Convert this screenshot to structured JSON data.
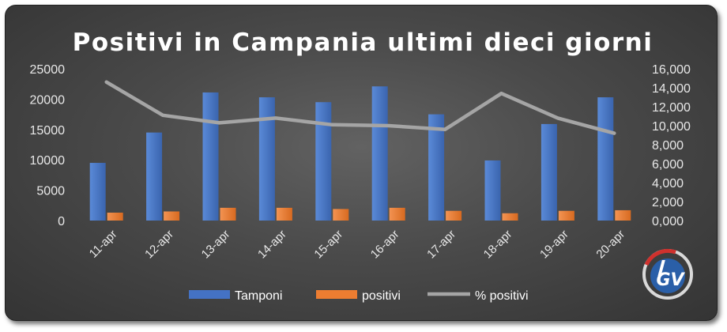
{
  "chart_data": {
    "type": "bar",
    "title": "Positivi in Campania ultimi dieci giorni",
    "categories": [
      "11-apr",
      "12-apr",
      "13-apr",
      "14-apr",
      "15-apr",
      "16-apr",
      "17-apr",
      "18-apr",
      "19-apr",
      "20-apr"
    ],
    "series": [
      {
        "name": "Tamponi",
        "type": "bar",
        "axis": "left",
        "color": "#4472C4",
        "values": [
          9500,
          14500,
          21100,
          20300,
          19500,
          22100,
          17500,
          9900,
          15900,
          20300
        ]
      },
      {
        "name": "positivi",
        "type": "bar",
        "axis": "left",
        "color": "#ED7D31",
        "values": [
          1300,
          1500,
          2100,
          2100,
          1900,
          2100,
          1600,
          1200,
          1600,
          1700
        ]
      },
      {
        "name": "% positivi",
        "type": "line",
        "axis": "right",
        "color": "#A5A5A5",
        "values": [
          14600,
          11100,
          10300,
          10800,
          10100,
          10000,
          9600,
          13400,
          10800,
          9200
        ]
      }
    ],
    "y_left": {
      "min": 0,
      "max": 25000,
      "ticks": [
        "0",
        "5000",
        "10000",
        "15000",
        "20000",
        "25000"
      ]
    },
    "y_right": {
      "min": 0,
      "max": 16000,
      "ticks": [
        "0,000",
        "2,000",
        "4,000",
        "6,000",
        "8,000",
        "10,000",
        "12,000",
        "14,000",
        "16,000"
      ]
    },
    "grid": false,
    "legend": "bottom"
  },
  "logo": {
    "name": "igv-logo",
    "text": "GV"
  }
}
